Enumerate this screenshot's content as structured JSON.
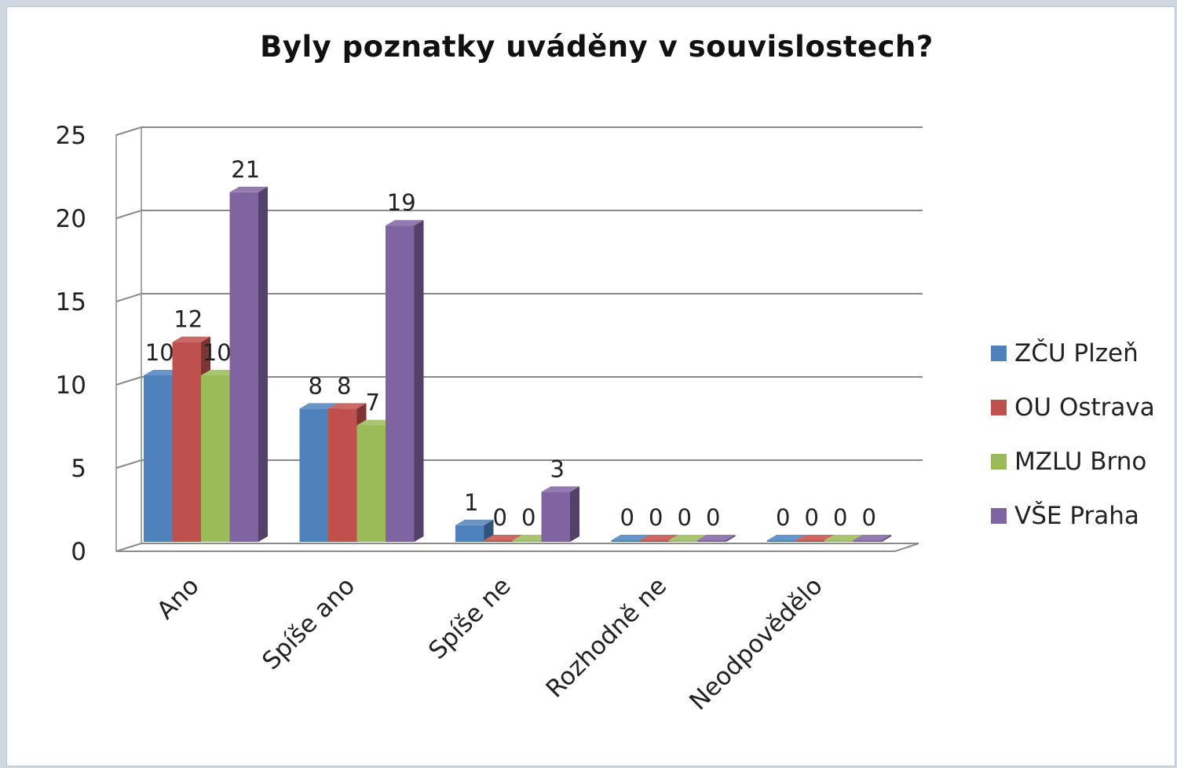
{
  "chart_data": {
    "type": "bar",
    "title": "Byly poznatky uváděny v souvislostech?",
    "categories": [
      "Ano",
      "Spíše ano",
      "Spíše ne",
      "Rozhodně ne",
      "Neodpovědělo"
    ],
    "series": [
      {
        "name": "ZČU Plzeň",
        "values": [
          10,
          8,
          1,
          0,
          0
        ],
        "color": "#4f81bd"
      },
      {
        "name": "OU Ostrava",
        "values": [
          12,
          8,
          0,
          0,
          0
        ],
        "color": "#c0504d"
      },
      {
        "name": "MZLU Brno",
        "values": [
          10,
          7,
          0,
          0,
          0
        ],
        "color": "#9bbb59"
      },
      {
        "name": "VŠE Praha",
        "values": [
          21,
          19,
          3,
          0,
          0
        ],
        "color": "#8064a2"
      }
    ],
    "yticks": [
      "0",
      "5",
      "10",
      "15",
      "20",
      "25"
    ],
    "ylim": [
      0,
      25
    ],
    "grid": true,
    "legend": "right"
  }
}
